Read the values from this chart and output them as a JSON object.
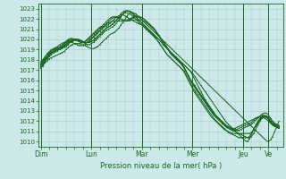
{
  "bg_color": "#cce8e8",
  "grid_color": "#aacccc",
  "line_color": "#1a6620",
  "text_color": "#1a6620",
  "ylabel_text": "Pression niveau de la mer( hPa )",
  "ylim": [
    1009.5,
    1023.5
  ],
  "yticks": [
    1010,
    1011,
    1012,
    1013,
    1014,
    1015,
    1016,
    1017,
    1018,
    1019,
    1020,
    1021,
    1022,
    1023
  ],
  "day_labels": [
    "Dim",
    "Lun",
    "Mar",
    "Mer",
    "Jeu",
    "Ve"
  ],
  "day_positions": [
    0,
    24,
    48,
    72,
    96,
    108
  ],
  "xlim": [
    -1,
    115
  ],
  "num_points": 114,
  "series": [
    [
      1017.2,
      1017.4,
      1017.7,
      1017.9,
      1018.1,
      1018.2,
      1018.3,
      1018.4,
      1018.5,
      1018.6,
      1018.7,
      1018.8,
      1019.0,
      1019.2,
      1019.4,
      1019.5,
      1019.6,
      1019.6,
      1019.6,
      1019.6,
      1019.5,
      1019.4,
      1019.3,
      1019.2,
      1019.1,
      1019.1,
      1019.2,
      1019.3,
      1019.5,
      1019.7,
      1019.9,
      1020.1,
      1020.3,
      1020.5,
      1020.6,
      1020.7,
      1020.9,
      1021.1,
      1021.4,
      1021.7,
      1022.0,
      1022.3,
      1022.5,
      1022.6,
      1022.6,
      1022.5,
      1022.3,
      1022.1,
      1021.9,
      1021.7,
      1021.5,
      1021.3,
      1021.1,
      1020.9,
      1020.7,
      1020.5,
      1020.3,
      1020.1,
      1019.9,
      1019.7,
      1019.5,
      1019.3,
      1019.1,
      1018.9,
      1018.7,
      1018.5,
      1018.3,
      1018.1,
      1017.9,
      1017.7,
      1017.5,
      1017.3,
      1017.1,
      1016.9,
      1016.7,
      1016.5,
      1016.3,
      1016.1,
      1015.9,
      1015.7,
      1015.5,
      1015.3,
      1015.1,
      1014.9,
      1014.7,
      1014.5,
      1014.3,
      1014.1,
      1013.9,
      1013.7,
      1013.5,
      1013.3,
      1013.1,
      1012.9,
      1012.7,
      1012.5,
      1012.3,
      1012.1,
      1011.9,
      1011.7,
      1011.5,
      1011.3,
      1011.1,
      1010.9,
      1010.7,
      1010.5,
      1010.3,
      1010.1,
      1010.0,
      1010.2,
      1010.5,
      1011.0,
      1011.5,
      1012.0
    ],
    [
      1017.2,
      1017.5,
      1017.8,
      1018.1,
      1018.3,
      1018.5,
      1018.7,
      1018.8,
      1018.9,
      1019.0,
      1019.1,
      1019.2,
      1019.3,
      1019.5,
      1019.7,
      1019.8,
      1019.9,
      1019.9,
      1019.9,
      1019.8,
      1019.7,
      1019.6,
      1019.5,
      1019.5,
      1019.6,
      1019.7,
      1019.9,
      1020.1,
      1020.3,
      1020.5,
      1020.7,
      1020.9,
      1021.0,
      1021.1,
      1021.2,
      1021.4,
      1021.6,
      1021.9,
      1022.2,
      1022.5,
      1022.7,
      1022.8,
      1022.8,
      1022.7,
      1022.5,
      1022.3,
      1022.0,
      1021.8,
      1021.6,
      1021.4,
      1021.2,
      1021.0,
      1020.8,
      1020.6,
      1020.4,
      1020.2,
      1020.0,
      1019.8,
      1019.5,
      1019.3,
      1019.1,
      1018.9,
      1018.7,
      1018.5,
      1018.3,
      1018.1,
      1017.9,
      1017.7,
      1017.5,
      1017.3,
      1017.1,
      1016.9,
      1016.7,
      1016.4,
      1016.1,
      1015.8,
      1015.5,
      1015.2,
      1014.9,
      1014.6,
      1014.3,
      1014.0,
      1013.7,
      1013.4,
      1013.1,
      1012.8,
      1012.5,
      1012.2,
      1011.9,
      1011.7,
      1011.5,
      1011.3,
      1011.1,
      1010.9,
      1010.7,
      1010.5,
      1010.3,
      1010.1,
      1010.0,
      1010.3,
      1010.7,
      1011.2,
      1011.6,
      1011.9,
      1012.2,
      1012.4,
      1012.5,
      1012.5,
      1012.4,
      1012.2,
      1012.0,
      1011.8,
      1011.6,
      1011.5
    ],
    [
      1017.3,
      1017.6,
      1017.9,
      1018.2,
      1018.4,
      1018.6,
      1018.8,
      1018.9,
      1019.0,
      1019.1,
      1019.2,
      1019.3,
      1019.4,
      1019.6,
      1019.8,
      1019.9,
      1020.0,
      1020.0,
      1020.0,
      1019.9,
      1019.8,
      1019.7,
      1019.7,
      1019.7,
      1019.8,
      1019.9,
      1020.1,
      1020.3,
      1020.5,
      1020.7,
      1020.9,
      1021.1,
      1021.2,
      1021.3,
      1021.5,
      1021.7,
      1021.9,
      1022.2,
      1022.5,
      1022.7,
      1022.8,
      1022.8,
      1022.7,
      1022.6,
      1022.4,
      1022.2,
      1022.0,
      1021.8,
      1021.6,
      1021.4,
      1021.2,
      1021.0,
      1020.8,
      1020.6,
      1020.4,
      1020.2,
      1020.0,
      1019.8,
      1019.5,
      1019.3,
      1019.1,
      1018.9,
      1018.7,
      1018.5,
      1018.3,
      1018.1,
      1017.9,
      1017.7,
      1017.5,
      1017.3,
      1017.1,
      1016.9,
      1016.5,
      1016.1,
      1015.7,
      1015.3,
      1014.9,
      1014.5,
      1014.1,
      1013.8,
      1013.5,
      1013.2,
      1012.9,
      1012.6,
      1012.3,
      1012.1,
      1011.9,
      1011.7,
      1011.5,
      1011.3,
      1011.2,
      1011.1,
      1011.0,
      1010.9,
      1010.8,
      1010.7,
      1010.6,
      1010.5,
      1010.4,
      1010.5,
      1010.8,
      1011.2,
      1011.6,
      1012.0,
      1012.3,
      1012.5,
      1012.6,
      1012.5,
      1012.3,
      1012.0,
      1011.8,
      1011.7,
      1011.6,
      1011.5
    ],
    [
      1017.4,
      1017.7,
      1018.0,
      1018.3,
      1018.5,
      1018.7,
      1018.8,
      1018.9,
      1019.0,
      1019.1,
      1019.2,
      1019.3,
      1019.5,
      1019.7,
      1019.8,
      1019.9,
      1020.0,
      1020.0,
      1020.0,
      1019.9,
      1019.8,
      1019.7,
      1019.7,
      1019.7,
      1019.8,
      1019.9,
      1020.1,
      1020.3,
      1020.5,
      1020.7,
      1020.9,
      1021.1,
      1021.2,
      1021.3,
      1021.5,
      1021.7,
      1021.9,
      1022.1,
      1022.3,
      1022.5,
      1022.6,
      1022.6,
      1022.5,
      1022.4,
      1022.2,
      1022.0,
      1021.8,
      1021.6,
      1021.4,
      1021.2,
      1021.0,
      1020.8,
      1020.6,
      1020.4,
      1020.2,
      1020.0,
      1019.7,
      1019.4,
      1019.1,
      1018.8,
      1018.5,
      1018.3,
      1018.1,
      1017.9,
      1017.7,
      1017.5,
      1017.3,
      1017.1,
      1016.9,
      1016.5,
      1016.1,
      1015.7,
      1015.3,
      1015.0,
      1014.7,
      1014.4,
      1014.1,
      1013.8,
      1013.5,
      1013.2,
      1012.9,
      1012.6,
      1012.3,
      1012.1,
      1011.9,
      1011.7,
      1011.5,
      1011.3,
      1011.1,
      1010.9,
      1010.8,
      1010.7,
      1010.6,
      1010.5,
      1010.4,
      1010.4,
      1010.4,
      1010.4,
      1010.4,
      1010.4,
      1010.5,
      1010.8,
      1011.2,
      1011.6,
      1012.0,
      1012.3,
      1012.5,
      1012.5,
      1012.3,
      1012.0,
      1011.8,
      1011.6,
      1011.5,
      1011.4
    ],
    [
      1017.5,
      1017.8,
      1018.0,
      1018.2,
      1018.5,
      1018.7,
      1018.8,
      1018.9,
      1019.0,
      1019.1,
      1019.2,
      1019.4,
      1019.6,
      1019.8,
      1019.9,
      1020.0,
      1020.0,
      1020.0,
      1019.9,
      1019.8,
      1019.7,
      1019.7,
      1019.7,
      1019.8,
      1020.0,
      1020.2,
      1020.4,
      1020.6,
      1020.8,
      1021.0,
      1021.2,
      1021.3,
      1021.4,
      1021.6,
      1021.8,
      1022.0,
      1022.2,
      1022.3,
      1022.4,
      1022.4,
      1022.3,
      1022.2,
      1022.0,
      1021.9,
      1021.8,
      1021.7,
      1021.6,
      1021.5,
      1021.4,
      1021.3,
      1021.1,
      1020.9,
      1020.7,
      1020.5,
      1020.3,
      1020.0,
      1019.7,
      1019.4,
      1019.1,
      1018.8,
      1018.5,
      1018.3,
      1018.1,
      1017.9,
      1017.7,
      1017.5,
      1017.3,
      1017.1,
      1016.8,
      1016.4,
      1016.0,
      1015.6,
      1015.2,
      1014.8,
      1014.5,
      1014.2,
      1013.9,
      1013.6,
      1013.3,
      1013.0,
      1012.7,
      1012.4,
      1012.2,
      1012.0,
      1011.8,
      1011.6,
      1011.4,
      1011.2,
      1011.1,
      1011.0,
      1010.9,
      1010.8,
      1010.8,
      1010.8,
      1010.8,
      1010.8,
      1010.8,
      1010.8,
      1010.8,
      1010.8,
      1010.9,
      1011.2,
      1011.5,
      1011.8,
      1012.1,
      1012.3,
      1012.4,
      1012.4,
      1012.2,
      1011.9,
      1011.7,
      1011.5,
      1011.4,
      1011.3
    ],
    [
      1017.6,
      1017.9,
      1018.1,
      1018.3,
      1018.6,
      1018.8,
      1018.9,
      1019.0,
      1019.1,
      1019.2,
      1019.3,
      1019.5,
      1019.7,
      1019.9,
      1020.0,
      1020.0,
      1020.0,
      1019.9,
      1019.8,
      1019.7,
      1019.7,
      1019.8,
      1019.9,
      1020.1,
      1020.3,
      1020.5,
      1020.7,
      1020.9,
      1021.1,
      1021.2,
      1021.3,
      1021.5,
      1021.7,
      1021.9,
      1022.1,
      1022.2,
      1022.2,
      1022.1,
      1022.0,
      1021.9,
      1021.8,
      1021.8,
      1021.8,
      1021.9,
      1021.9,
      1021.9,
      1021.9,
      1021.9,
      1021.9,
      1021.8,
      1021.7,
      1021.5,
      1021.3,
      1021.1,
      1020.9,
      1020.6,
      1020.3,
      1020.0,
      1019.7,
      1019.4,
      1019.1,
      1018.8,
      1018.5,
      1018.3,
      1018.1,
      1017.9,
      1017.7,
      1017.5,
      1017.2,
      1016.8,
      1016.4,
      1016.0,
      1015.6,
      1015.3,
      1015.0,
      1014.7,
      1014.4,
      1014.1,
      1013.8,
      1013.5,
      1013.2,
      1012.9,
      1012.6,
      1012.4,
      1012.2,
      1012.0,
      1011.8,
      1011.6,
      1011.4,
      1011.3,
      1011.2,
      1011.1,
      1011.1,
      1011.1,
      1011.1,
      1011.2,
      1011.3,
      1011.4,
      1011.5,
      1011.6,
      1011.7,
      1011.9,
      1012.1,
      1012.3,
      1012.5,
      1012.7,
      1012.8,
      1012.8,
      1012.6,
      1012.3,
      1012.0,
      1011.8,
      1011.7,
      1011.6
    ],
    [
      1017.7,
      1018.0,
      1018.2,
      1018.5,
      1018.7,
      1018.9,
      1019.0,
      1019.1,
      1019.2,
      1019.3,
      1019.4,
      1019.6,
      1019.8,
      1020.0,
      1020.1,
      1020.1,
      1020.0,
      1019.9,
      1019.8,
      1019.7,
      1019.7,
      1019.8,
      1020.0,
      1020.2,
      1020.4,
      1020.6,
      1020.8,
      1021.0,
      1021.2,
      1021.3,
      1021.5,
      1021.7,
      1021.9,
      1022.1,
      1022.2,
      1022.2,
      1022.2,
      1022.1,
      1022.0,
      1021.9,
      1021.8,
      1021.8,
      1021.9,
      1022.0,
      1022.1,
      1022.2,
      1022.2,
      1022.2,
      1022.1,
      1022.0,
      1021.8,
      1021.6,
      1021.4,
      1021.2,
      1021.0,
      1020.7,
      1020.4,
      1020.1,
      1019.8,
      1019.5,
      1019.2,
      1018.9,
      1018.6,
      1018.4,
      1018.2,
      1018.0,
      1017.8,
      1017.5,
      1017.2,
      1016.8,
      1016.4,
      1016.0,
      1015.7,
      1015.4,
      1015.1,
      1014.8,
      1014.5,
      1014.2,
      1013.9,
      1013.6,
      1013.3,
      1013.0,
      1012.7,
      1012.5,
      1012.3,
      1012.1,
      1011.9,
      1011.7,
      1011.5,
      1011.4,
      1011.3,
      1011.2,
      1011.2,
      1011.2,
      1011.3,
      1011.4,
      1011.5,
      1011.6,
      1011.7,
      1011.8,
      1011.9,
      1012.1,
      1012.3,
      1012.4,
      1012.5,
      1012.6,
      1012.5,
      1012.4,
      1012.2,
      1011.9,
      1011.7,
      1011.5,
      1011.4,
      1011.3
    ],
    [
      1017.8,
      1018.0,
      1018.3,
      1018.6,
      1018.8,
      1019.0,
      1019.1,
      1019.2,
      1019.3,
      1019.5,
      1019.6,
      1019.7,
      1019.8,
      1019.8,
      1019.8,
      1019.7,
      1019.6,
      1019.5,
      1019.4,
      1019.4,
      1019.4,
      1019.5,
      1019.7,
      1019.9,
      1020.1,
      1020.3,
      1020.5,
      1020.7,
      1020.9,
      1021.1,
      1021.3,
      1021.5,
      1021.6,
      1021.7,
      1021.8,
      1021.8,
      1021.8,
      1021.8,
      1021.8,
      1021.8,
      1021.8,
      1021.9,
      1022.0,
      1022.1,
      1022.2,
      1022.3,
      1022.3,
      1022.2,
      1022.1,
      1022.0,
      1021.8,
      1021.6,
      1021.4,
      1021.2,
      1021.0,
      1020.7,
      1020.4,
      1020.1,
      1019.8,
      1019.5,
      1019.2,
      1018.9,
      1018.6,
      1018.4,
      1018.2,
      1018.0,
      1017.8,
      1017.6,
      1017.3,
      1016.9,
      1016.5,
      1016.1,
      1015.8,
      1015.5,
      1015.2,
      1014.9,
      1014.6,
      1014.3,
      1014.0,
      1013.7,
      1013.4,
      1013.1,
      1012.8,
      1012.6,
      1012.4,
      1012.2,
      1012.0,
      1011.8,
      1011.6,
      1011.5,
      1011.4,
      1011.3,
      1011.3,
      1011.4,
      1011.5,
      1011.6,
      1011.7,
      1011.8,
      1011.9,
      1012.0,
      1012.1,
      1012.2,
      1012.3,
      1012.4,
      1012.4,
      1012.4,
      1012.3,
      1012.2,
      1012.0,
      1011.8,
      1011.6,
      1011.5,
      1011.4,
      1011.3
    ]
  ]
}
